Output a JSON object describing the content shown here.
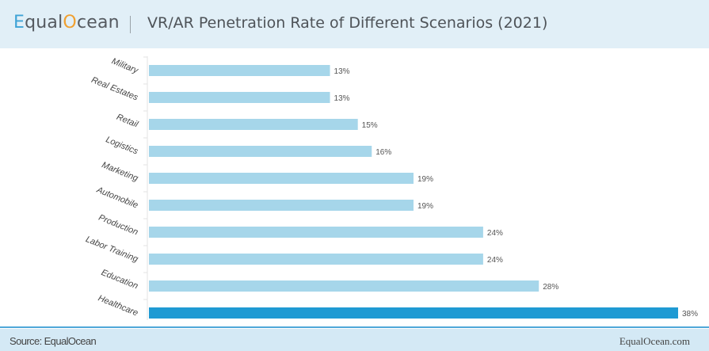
{
  "header": {
    "logo": {
      "e": "E",
      "qual": "qual",
      "o": "O",
      "cean": "cean"
    },
    "title": "VR/AR Penetration Rate of Different Scenarios (2021)"
  },
  "footer": {
    "source": "Source: EqualOcean",
    "site": "EqualOcean.com"
  },
  "colors": {
    "bar": "#a6d6ea",
    "highlight": "#1f9ad3",
    "header_bg": "#e1eff7",
    "footer_bg": "#d4e9f5"
  },
  "chart_data": {
    "type": "bar",
    "orientation": "horizontal",
    "title": "VR/AR Penetration Rate of Different Scenarios (2021)",
    "categories": [
      "Military",
      "Real Estates",
      "Retail",
      "Logistics",
      "Marketing",
      "Automobile",
      "Production",
      "Labor Training",
      "Education",
      "Healthcare"
    ],
    "values": [
      13,
      13,
      15,
      16,
      19,
      19,
      24,
      24,
      28,
      38
    ],
    "labels": [
      "13%",
      "13%",
      "15%",
      "16%",
      "19%",
      "19%",
      "24%",
      "24%",
      "28%",
      "38%"
    ],
    "highlight": "Healthcare",
    "xlim": [
      0,
      38
    ],
    "unit": "%",
    "grid": false
  }
}
